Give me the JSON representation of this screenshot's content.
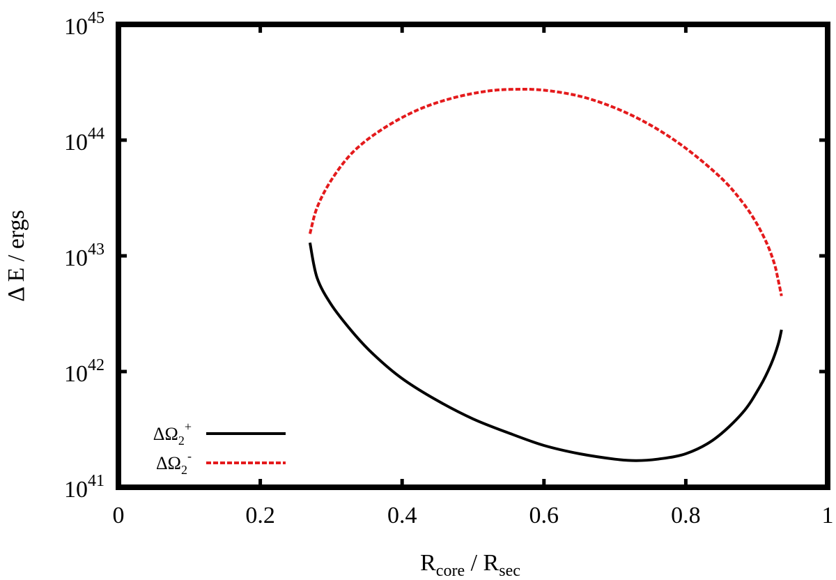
{
  "chart_data": {
    "type": "line",
    "xlabel": {
      "base": "R",
      "sub": "core",
      "sep": " / ",
      "base2": "R",
      "sub2": "sec"
    },
    "ylabel": "Δ E / ergs",
    "xlim": [
      0,
      1
    ],
    "ylim": [
      1e+41,
      1e+45
    ],
    "yscale": "log",
    "grid": false,
    "legend_position": "bottom-left",
    "x_ticks": [
      "0",
      "0.2",
      "0.4",
      "0.6",
      "0.8",
      "1"
    ],
    "y_ticks": [
      {
        "base": "10",
        "exp": "41"
      },
      {
        "base": "10",
        "exp": "42"
      },
      {
        "base": "10",
        "exp": "43"
      },
      {
        "base": "10",
        "exp": "44"
      },
      {
        "base": "10",
        "exp": "45"
      }
    ],
    "series": [
      {
        "name": "ΔΩ₂⁺",
        "legend": {
          "base": "ΔΩ",
          "sub": "2",
          "sup": "+"
        },
        "color": "#000000",
        "dash": "solid",
        "x": [
          0.27,
          0.28,
          0.3,
          0.33,
          0.36,
          0.4,
          0.45,
          0.5,
          0.55,
          0.6,
          0.65,
          0.7,
          0.73,
          0.76,
          0.8,
          0.84,
          0.88,
          0.905,
          0.92,
          0.93,
          0.935
        ],
        "y": [
          1.3e+43,
          6.5e+42,
          3.8e+42,
          2.2e+42,
          1.4e+42,
          8.7e+41,
          5.6e+41,
          3.9e+41,
          2.95e+41,
          2.3e+41,
          1.95e+41,
          1.75e+41,
          1.7e+41,
          1.75e+41,
          1.95e+41,
          2.6e+41,
          4.4e+41,
          7.5e+41,
          1.15e+42,
          1.7e+42,
          2.3e+42
        ]
      },
      {
        "name": "ΔΩ₂⁻",
        "legend": {
          "base": "ΔΩ",
          "sub": "2",
          "sup": "-"
        },
        "color": "#e41a1c",
        "dash": "dashed",
        "x": [
          0.27,
          0.28,
          0.3,
          0.33,
          0.37,
          0.42,
          0.47,
          0.52,
          0.56,
          0.6,
          0.65,
          0.7,
          0.75,
          0.8,
          0.85,
          0.88,
          0.9,
          0.915,
          0.925,
          0.93,
          0.935
        ],
        "y": [
          1.55e+43,
          2.6e+43,
          4.5e+43,
          7.8e+43,
          1.22e+44,
          1.8e+44,
          2.3e+44,
          2.65e+44,
          2.75e+44,
          2.7e+44,
          2.4e+44,
          1.9e+44,
          1.35e+44,
          8.5e+43,
          4.7e+43,
          2.9e+43,
          1.9e+43,
          1.25e+43,
          8.5e+42,
          6.3e+42,
          4.5e+42
        ]
      }
    ]
  }
}
